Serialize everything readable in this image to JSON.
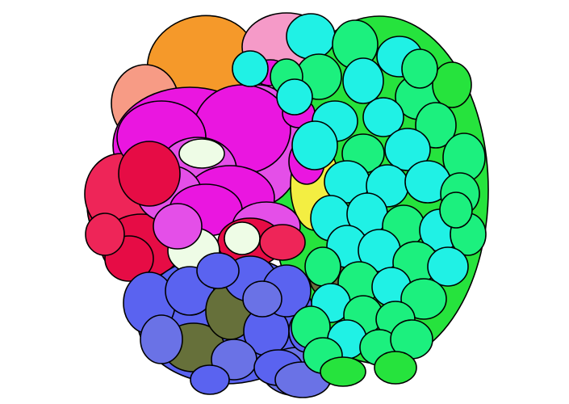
{
  "image": {
    "subject": "overlapping-circles-cluster",
    "background_color": "#ffffff",
    "outline_color": "#000000",
    "palette": {
      "orange": "#f5992a",
      "salmon": "#f79b85",
      "pink": "#f59ac8",
      "magenta": "#ea16e0",
      "violet": "#e44fe8",
      "crimson": "#e60c45",
      "rose": "#ee2558",
      "cream": "#eefce6",
      "yellow": "#f3ee42",
      "blue": "#5a63f0",
      "periwinkle": "#6a72e6",
      "olive": "#66703a",
      "green": "#1cf07e",
      "lime": "#26e33d",
      "cyan": "#20f1e5",
      "teal": "#1ad9cf"
    }
  }
}
